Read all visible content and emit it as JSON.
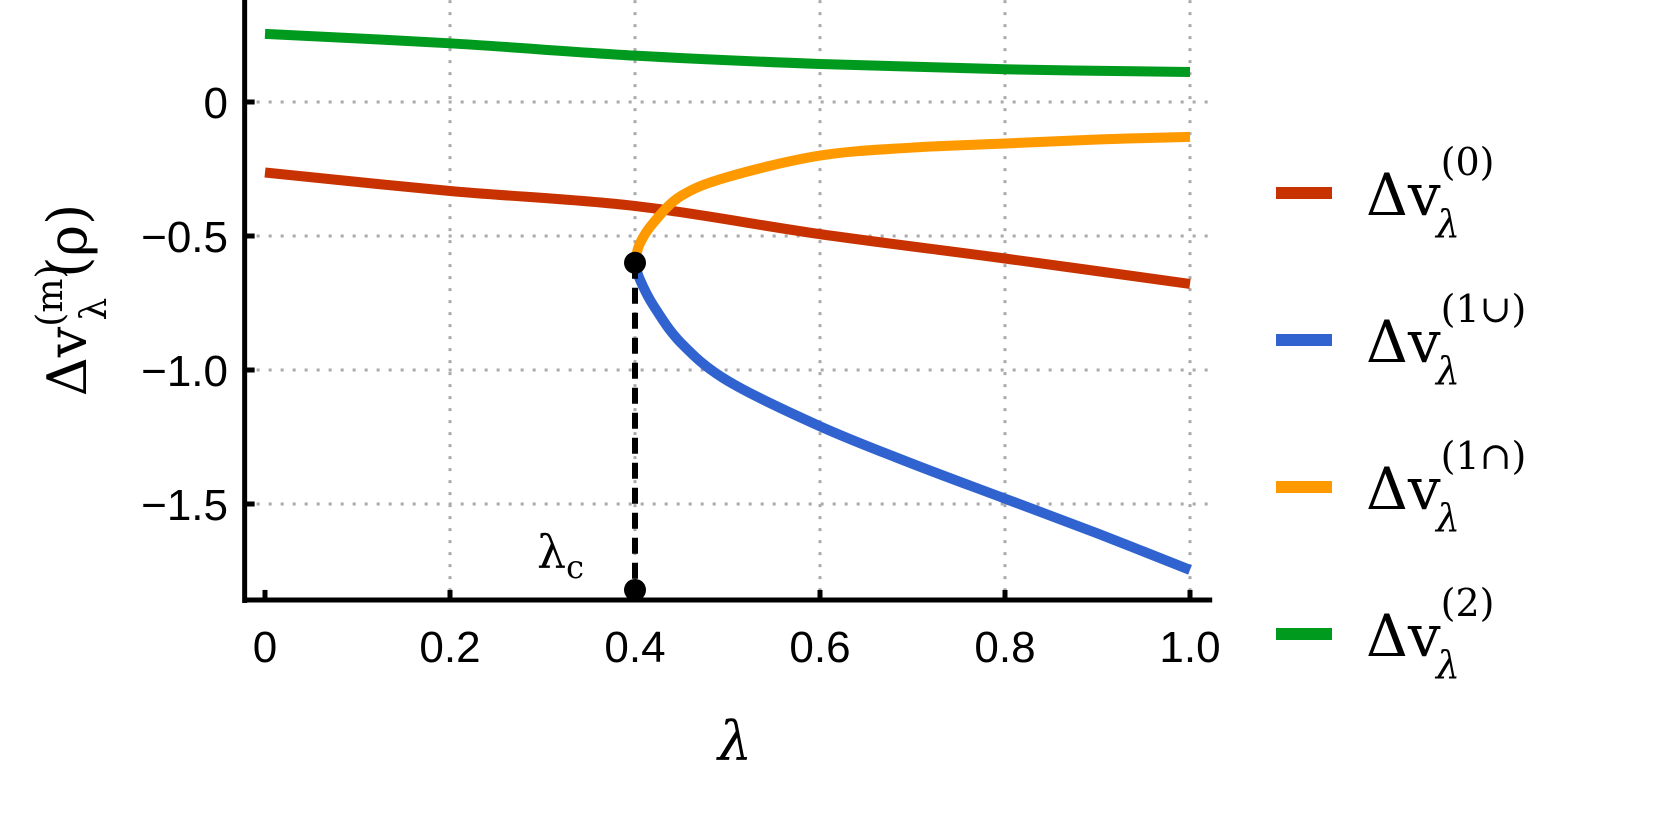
{
  "chart_data": {
    "type": "line",
    "xlabel": "λ",
    "ylabel": {
      "base": "Δv",
      "sup": "(m)",
      "sub": "λ",
      "arg": "(ρ)"
    },
    "xlim": [
      -0.022,
      1.024
    ],
    "ylim": [
      -1.858,
      0.38
    ],
    "xticks": [
      0,
      0.2,
      0.4,
      0.6,
      0.8,
      1.0
    ],
    "xtick_labels": [
      "0",
      "0.2",
      "0.4",
      "0.6",
      "0.8",
      "1.0"
    ],
    "yticks": [
      0,
      -0.5,
      -1.0,
      -1.5
    ],
    "ytick_labels": [
      "0",
      "−0.5",
      "−1.0",
      "−1.5"
    ],
    "grid": true,
    "legend_position": "right",
    "series": [
      {
        "name": {
          "base": "Δv",
          "sub": "λ",
          "sup": "(0)"
        },
        "color": "#C83200",
        "x": [
          0,
          0.2,
          0.4,
          0.6,
          0.8,
          1.0
        ],
        "y": [
          -0.263,
          -0.332,
          -0.388,
          -0.493,
          -0.584,
          -0.679
        ]
      },
      {
        "name": {
          "base": "Δv",
          "sub": "λ",
          "sup": "(1∪)"
        },
        "color": "#3063CF",
        "x": [
          0.4,
          0.405,
          0.42,
          0.45,
          0.5,
          0.6,
          0.7,
          0.8,
          0.9,
          1.0
        ],
        "y": [
          -0.6,
          -0.66,
          -0.76,
          -0.9,
          -1.04,
          -1.21,
          -1.35,
          -1.48,
          -1.61,
          -1.746
        ]
      },
      {
        "name": {
          "base": "Δv",
          "sub": "λ",
          "sup": "(1∩)"
        },
        "color": "#FF9900",
        "x": [
          0.4,
          0.405,
          0.42,
          0.45,
          0.5,
          0.6,
          0.7,
          0.8,
          0.9,
          1.0
        ],
        "y": [
          -0.6,
          -0.53,
          -0.45,
          -0.35,
          -0.28,
          -0.2,
          -0.17,
          -0.155,
          -0.14,
          -0.13
        ]
      },
      {
        "name": {
          "base": "Δv",
          "sub": "λ",
          "sup": "(2)"
        },
        "color": "#009A1E",
        "x": [
          0,
          0.2,
          0.4,
          0.6,
          0.8,
          1.0
        ],
        "y": [
          0.254,
          0.219,
          0.173,
          0.142,
          0.122,
          0.112
        ]
      }
    ],
    "annotations": {
      "critical_point": {
        "x": 0.4,
        "y": -0.6
      },
      "critical_label": {
        "base": "λ",
        "sub": "c"
      }
    }
  }
}
